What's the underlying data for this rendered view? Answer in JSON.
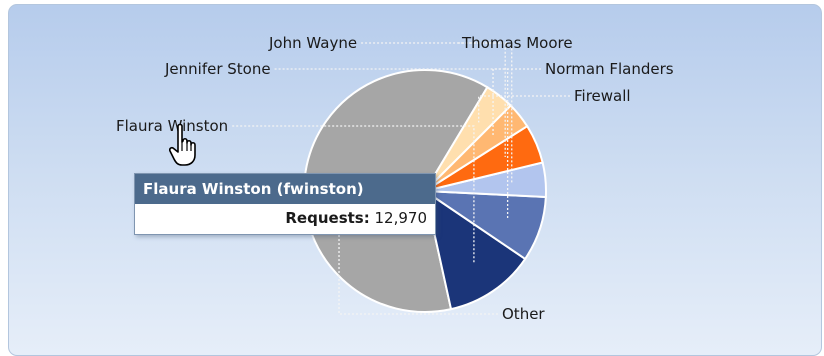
{
  "chart_data": {
    "type": "pie",
    "series": [
      {
        "slices": [
          {
            "label": "Other",
            "value": 57.1,
            "color": "#a6a6a6"
          },
          {
            "label": "Flaura Winston",
            "value": 11.1,
            "color": "#1b3579"
          },
          {
            "label": "Jennifer Stone",
            "value": 8.0,
            "color": "#5a74b3"
          },
          {
            "label": "John Wayne",
            "value": 4.2,
            "color": "#b2c5ee"
          },
          {
            "label": "Thomas Moore",
            "value": 4.8,
            "color": "#ff6a10"
          },
          {
            "label": "Norman Flanders",
            "value": 3.2,
            "color": "#ffb872"
          },
          {
            "label": "Firewall",
            "value": 3.6,
            "color": "#ffdfae"
          }
        ]
      }
    ]
  },
  "tooltip": {
    "title": "Flaura Winston (fwinston)",
    "metric_label": "Requests:",
    "metric_value": "12,970"
  }
}
